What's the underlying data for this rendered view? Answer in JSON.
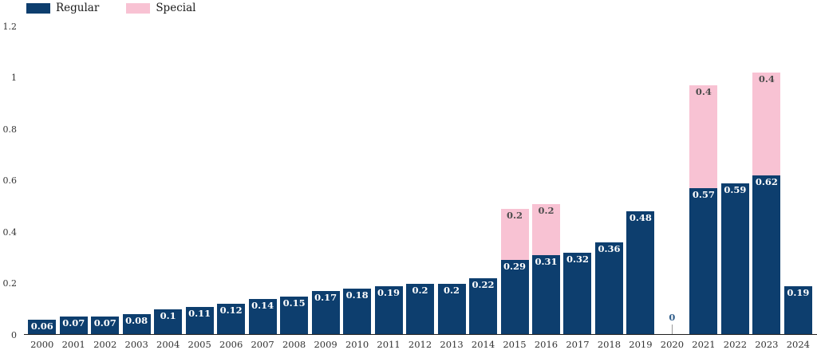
{
  "legend": {
    "items": [
      {
        "label": "Regular",
        "color": "#0d3e6e"
      },
      {
        "label": "Special",
        "color": "#f8c2d3"
      }
    ]
  },
  "chart_data": {
    "type": "bar",
    "stacked": true,
    "title": "",
    "xlabel": "",
    "ylabel": "",
    "categories": [
      "2000",
      "2001",
      "2002",
      "2003",
      "2004",
      "2005",
      "2006",
      "2007",
      "2008",
      "2009",
      "2010",
      "2011",
      "2012",
      "2013",
      "2014",
      "2015",
      "2016",
      "2017",
      "2018",
      "2019",
      "2020",
      "2021",
      "2022",
      "2023",
      "2024"
    ],
    "series": [
      {
        "name": "Regular",
        "color": "#0d3e6e",
        "values": [
          0.06,
          0.07,
          0.07,
          0.08,
          0.1,
          0.11,
          0.12,
          0.14,
          0.15,
          0.17,
          0.18,
          0.19,
          0.2,
          0.2,
          0.22,
          0.29,
          0.31,
          0.32,
          0.36,
          0.48,
          0,
          0.57,
          0.59,
          0.62,
          0.19
        ]
      },
      {
        "name": "Special",
        "color": "#f8c2d3",
        "values": [
          0,
          0,
          0,
          0,
          0,
          0,
          0,
          0,
          0,
          0,
          0,
          0,
          0,
          0,
          0,
          0.2,
          0.2,
          0,
          0,
          0,
          0,
          0.4,
          0,
          0.4,
          0
        ]
      }
    ],
    "ylim": [
      0,
      1.2
    ],
    "ytick_labels": [
      "0",
      "0.2",
      "0.4",
      "0.6",
      "0.8",
      "1",
      "1.2"
    ],
    "ytick_values": [
      0,
      0.2,
      0.4,
      0.6,
      0.8,
      1,
      1.2
    ],
    "grid": false,
    "legend_position": "top-left",
    "value_labels_shown": true,
    "zero_year_label": "0"
  },
  "colors": {
    "regular_bar": "#0d3e6e",
    "special_bar": "#f8c2d3",
    "regular_value_label": "#ffffff",
    "special_value_label": "#4d4d4d",
    "zero_value_label": "#33608c",
    "axis_line": "#1f1f1f",
    "tick_text": "#333333",
    "background": "#ffffff"
  }
}
